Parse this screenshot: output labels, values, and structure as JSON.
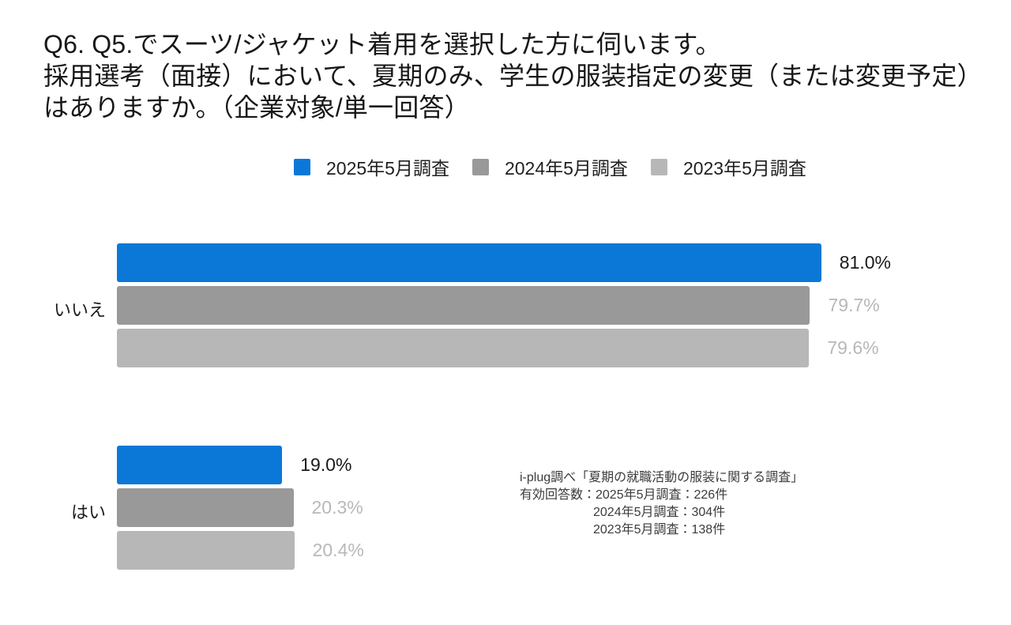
{
  "title": {
    "lines": [
      "Q6. Q5.でスーツ/ジャケット着用を選択した方に伺います。",
      "採用選考（面接）において、夏期のみ、学生の服装指定の変更（または変更予定）",
      "はありますか。（企業対象/単一回答）"
    ]
  },
  "legend": {
    "items": [
      {
        "label": "2025年5月調査",
        "color": "#0b78d8"
      },
      {
        "label": "2024年5月調査",
        "color": "#999999"
      },
      {
        "label": "2023年5月調査",
        "color": "#b7b7b7"
      }
    ]
  },
  "chart_data": {
    "type": "bar",
    "orientation": "horizontal",
    "title": "Q6. 採用選考（面接）において、夏期のみ、学生の服装指定の変更（または変更予定）はありますか。（企業対象/単一回答）",
    "xlabel": "",
    "ylabel": "",
    "unit": "%",
    "xlim": [
      0,
      100
    ],
    "grid": false,
    "legend_position": "top",
    "categories": [
      "いいえ",
      "はい"
    ],
    "series": [
      {
        "name": "2025年5月調査",
        "color": "#0b78d8",
        "values": [
          81.0,
          19.0
        ],
        "value_label_color": "#1a1a1a"
      },
      {
        "name": "2024年5月調査",
        "color": "#999999",
        "values": [
          79.7,
          20.3
        ],
        "value_label_color": "#b8b8b8"
      },
      {
        "name": "2023年5月調査",
        "color": "#b7b7b7",
        "values": [
          79.6,
          20.4
        ],
        "value_label_color": "#b8b8b8"
      }
    ],
    "value_labels": [
      [
        "81.0%",
        "79.7%",
        "79.6%"
      ],
      [
        "19.0%",
        "20.3%",
        "20.4%"
      ]
    ]
  },
  "source_note": {
    "lines": [
      "i-plug調べ「夏期の就職活動の服装に関する調査」",
      "有効回答数：2025年5月調査：226件",
      "2024年5月調査：304件",
      "2023年5月調査：138件"
    ]
  }
}
